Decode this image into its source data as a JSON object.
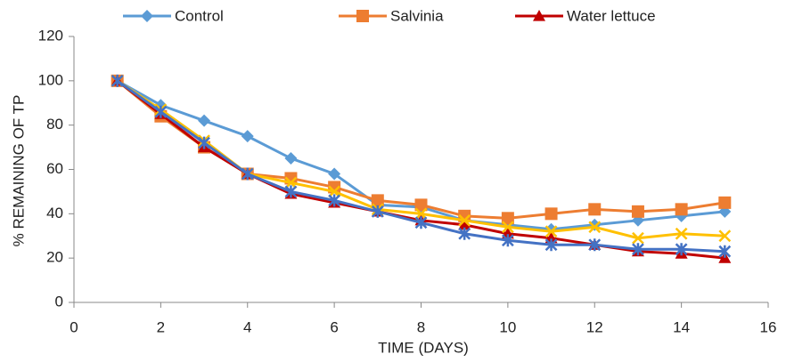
{
  "chart_data": {
    "type": "line",
    "x_label": "TIME (DAYS)",
    "y_label": "% REMAINING OF TP",
    "x": [
      1,
      2,
      3,
      4,
      5,
      6,
      7,
      8,
      9,
      10,
      11,
      12,
      13,
      14,
      15
    ],
    "series": [
      {
        "name": "Control",
        "color": "#5b9bd5",
        "marker": "diamond",
        "values": [
          100,
          89,
          82,
          75,
          65,
          58,
          44,
          43,
          37,
          35,
          33,
          35,
          37,
          39,
          41
        ]
      },
      {
        "name": "Salvinia",
        "color": "#ed7d31",
        "marker": "square",
        "values": [
          100,
          84,
          70,
          58,
          56,
          52,
          46,
          44,
          39,
          38,
          40,
          42,
          41,
          42,
          45
        ]
      },
      {
        "name": "Water lettuce",
        "color": "#c00000",
        "marker": "triangle",
        "values": [
          100,
          85,
          70,
          58,
          49,
          45,
          41,
          37,
          35,
          31,
          29,
          26,
          23,
          22,
          20
        ]
      },
      {
        "color": "#ffc000",
        "marker": "x",
        "values": [
          100,
          87,
          73,
          58,
          54,
          50,
          42,
          40,
          37,
          34,
          32,
          34,
          29,
          31,
          30
        ]
      },
      {
        "color": "#4472c4",
        "marker": "star",
        "values": [
          100,
          86,
          72,
          58,
          50,
          46,
          41,
          36,
          31,
          28,
          26,
          26,
          24,
          24,
          23
        ]
      }
    ],
    "xlim": [
      0,
      16
    ],
    "xticks": [
      0,
      2,
      4,
      6,
      8,
      10,
      12,
      14,
      16
    ],
    "ylim": [
      0,
      120
    ],
    "yticks": [
      0,
      20,
      40,
      60,
      80,
      100,
      120
    ],
    "legend": "top",
    "grid": false
  }
}
